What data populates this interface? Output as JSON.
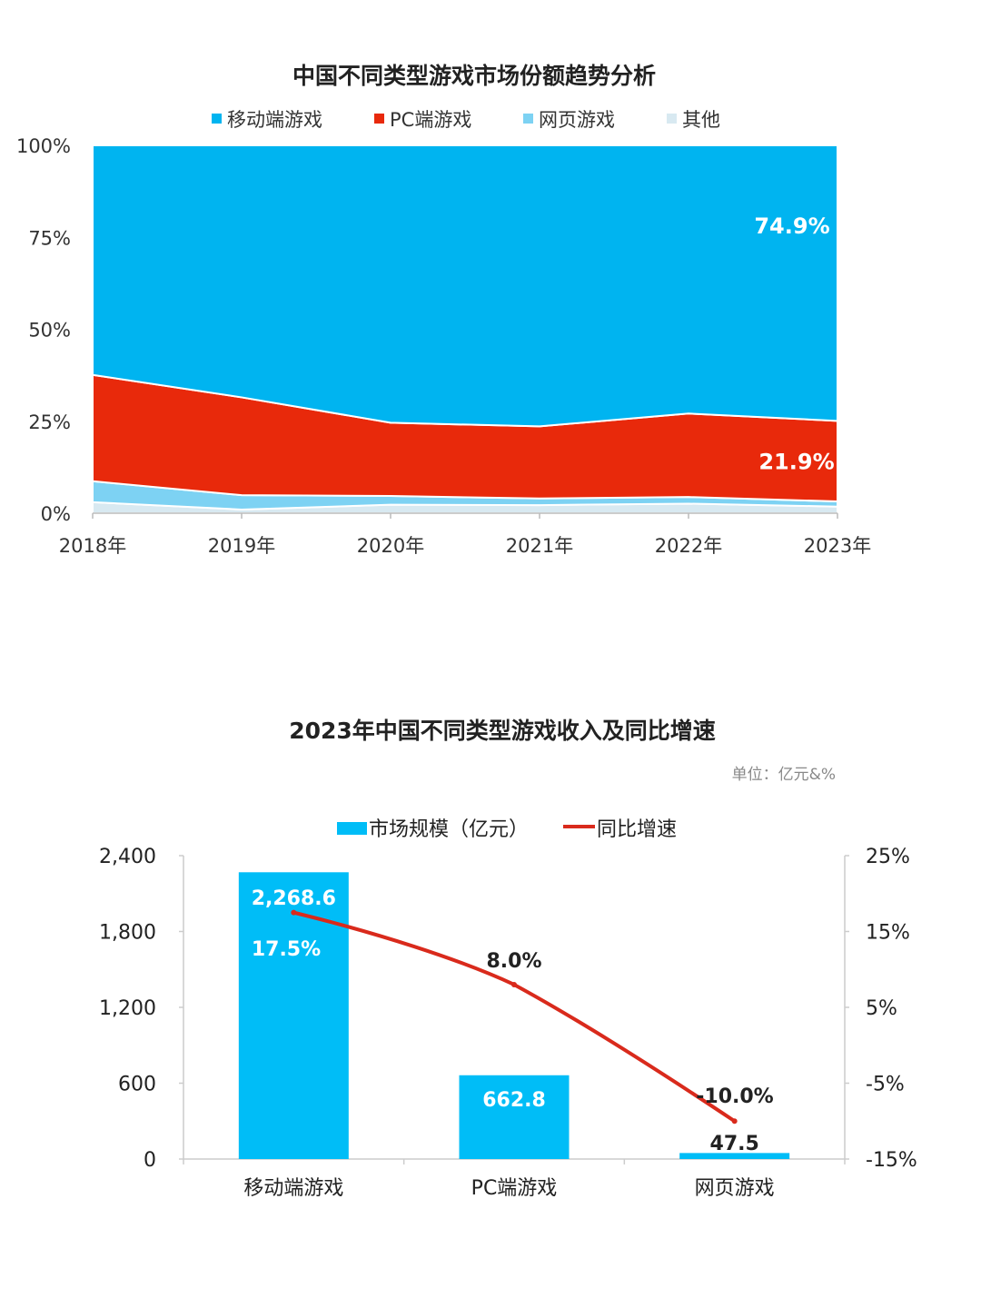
{
  "chart_data": [
    {
      "type": "area",
      "stacked": true,
      "normalized": true,
      "title": "中国不同类型游戏市场份额趋势分析",
      "categories": [
        "2018年",
        "2019年",
        "2020年",
        "2021年",
        "2022年",
        "2023年"
      ],
      "y_ticks": [
        "0%",
        "25%",
        "50%",
        "75%",
        "100%"
      ],
      "ylim": [
        0,
        100
      ],
      "legend_position": "top",
      "series": [
        {
          "name": "其他",
          "color": "#d8e9f1",
          "values": [
            3.0,
            1.0,
            2.3,
            2.2,
            2.6,
            1.8
          ]
        },
        {
          "name": "网页游戏",
          "color": "#7dd2f3",
          "values": [
            5.7,
            3.9,
            2.4,
            1.8,
            1.8,
            1.4
          ]
        },
        {
          "name": "PC端游戏",
          "color": "#e8290b",
          "values": [
            28.9,
            26.6,
            19.9,
            19.6,
            22.7,
            21.9
          ]
        },
        {
          "name": "移动端游戏",
          "color": "#00b4f0",
          "values": [
            62.4,
            68.5,
            75.4,
            76.4,
            72.9,
            74.9
          ]
        }
      ],
      "legend_order": [
        "移动端游戏",
        "PC端游戏",
        "网页游戏",
        "其他"
      ],
      "annotations": [
        {
          "series": "移动端游戏",
          "category": "2023年",
          "label": "74.9%"
        },
        {
          "series": "PC端游戏",
          "category": "2023年",
          "label": "21.9%"
        }
      ]
    },
    {
      "type": "bar",
      "title": "2023年中国不同类型游戏收入及同比增速",
      "unit_note": "单位：亿元&%",
      "categories": [
        "移动端游戏",
        "PC端游戏",
        "网页游戏"
      ],
      "legend_position": "top",
      "bar_series": {
        "name": "市场规模（亿元）",
        "color": "#00bdf7",
        "values": [
          2268.6,
          662.8,
          47.5
        ],
        "labels": [
          "2,268.6",
          "662.8",
          "47.5"
        ]
      },
      "line_series": {
        "name": "同比增速",
        "color": "#d92a1c",
        "values": [
          17.5,
          8.0,
          -10.0
        ],
        "labels": [
          "17.5%",
          "8.0%",
          "-10.0%"
        ]
      },
      "y_left": {
        "range": [
          0,
          2400
        ],
        "ticks": [
          "0",
          "600",
          "1,200",
          "1,800",
          "2,400"
        ]
      },
      "y_right": {
        "range": [
          -15,
          25
        ],
        "ticks": [
          "-15%",
          "-5%",
          "5%",
          "15%",
          "25%"
        ]
      }
    }
  ]
}
